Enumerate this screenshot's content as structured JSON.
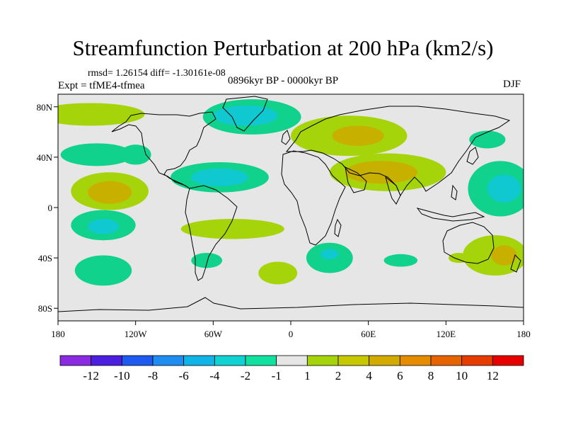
{
  "title": "Streamfunction Perturbation at 200 hPa (km2/s)",
  "stats": "rmsd= 1.26154 diff= -1.30161e-08",
  "experiment": "Expt = tfME4-tfmea",
  "period": "0896kyr BP - 0000kyr BP",
  "season": "DJF",
  "map": {
    "projection": "cylindrical equidistant",
    "lon_range": [
      -180,
      180
    ],
    "lat_range": [
      -90,
      90
    ],
    "x_ticks": [
      {
        "value": -180,
        "label": "180"
      },
      {
        "value": -120,
        "label": "120W"
      },
      {
        "value": -60,
        "label": "60W"
      },
      {
        "value": 0,
        "label": "0"
      },
      {
        "value": 60,
        "label": "60E"
      },
      {
        "value": 120,
        "label": "120E"
      },
      {
        "value": 180,
        "label": "180"
      }
    ],
    "y_ticks": [
      {
        "value": 80,
        "label": "80N"
      },
      {
        "value": 40,
        "label": "40N"
      },
      {
        "value": 0,
        "label": "0"
      },
      {
        "value": -40,
        "label": "40S"
      },
      {
        "value": -80,
        "label": "80S"
      }
    ],
    "colors": {
      "background": "#e6e6e6",
      "coastline": "#000000"
    },
    "anomaly_regions": [
      {
        "name": "north-pacific-high",
        "lon": -155,
        "lat": 74,
        "rlon": 42,
        "rlat": 9,
        "color": "#a6d40a"
      },
      {
        "name": "greenland-low",
        "lon": -30,
        "lat": 72,
        "rlon": 38,
        "rlat": 14,
        "color": "#10d28c"
      },
      {
        "name": "greenland-low-core",
        "lon": -35,
        "lat": 73,
        "rlon": 25,
        "rlat": 8,
        "color": "#10c8d0"
      },
      {
        "name": "europe-high",
        "lon": 45,
        "lat": 57,
        "rlon": 45,
        "rlat": 16,
        "color": "#a6d40a"
      },
      {
        "name": "europe-high-core",
        "lon": 52,
        "lat": 57,
        "rlon": 20,
        "rlat": 8,
        "color": "#c8b000"
      },
      {
        "name": "asia-high",
        "lon": 75,
        "lat": 28,
        "rlon": 45,
        "rlat": 15,
        "color": "#a6d40a"
      },
      {
        "name": "asia-high-core",
        "lon": 70,
        "lat": 28,
        "rlon": 28,
        "rlat": 9,
        "color": "#c8b000"
      },
      {
        "name": "pacific-low-north",
        "lon": -150,
        "lat": 42,
        "rlon": 28,
        "rlat": 9,
        "color": "#10d28c"
      },
      {
        "name": "atlantic-low",
        "lon": -55,
        "lat": 24,
        "rlon": 38,
        "rlat": 12,
        "color": "#10d28c"
      },
      {
        "name": "atlantic-low-core",
        "lon": -55,
        "lat": 24,
        "rlon": 22,
        "rlat": 7,
        "color": "#10c8d0"
      },
      {
        "name": "pacific-high-tropics",
        "lon": -140,
        "lat": 13,
        "rlon": 30,
        "rlat": 15,
        "color": "#a6d40a"
      },
      {
        "name": "pacific-high-core",
        "lon": -140,
        "lat": 12,
        "rlon": 17,
        "rlat": 9,
        "color": "#c8b000"
      },
      {
        "name": "west-pacific-low",
        "lon": 162,
        "lat": 15,
        "rlon": 25,
        "rlat": 22,
        "color": "#10d28c"
      },
      {
        "name": "west-pacific-low-core",
        "lon": 165,
        "lat": 15,
        "rlon": 13,
        "rlat": 11,
        "color": "#10c8d0"
      },
      {
        "name": "east-pacific-low-south",
        "lon": -145,
        "lat": -14,
        "rlon": 25,
        "rlat": 12,
        "color": "#10d28c"
      },
      {
        "name": "east-pacific-low-south-core",
        "lon": -145,
        "lat": -15,
        "rlon": 12,
        "rlat": 6,
        "color": "#10c8d0"
      },
      {
        "name": "south-pacific-low",
        "lon": -145,
        "lat": -50,
        "rlon": 22,
        "rlat": 12,
        "color": "#10d28c"
      },
      {
        "name": "south-atlantic-high",
        "lon": -45,
        "lat": -17,
        "rlon": 40,
        "rlat": 8,
        "color": "#a6d40a"
      },
      {
        "name": "south-america-low",
        "lon": -65,
        "lat": -42,
        "rlon": 12,
        "rlat": 6,
        "color": "#10d28c"
      },
      {
        "name": "south-atlantic-high-2",
        "lon": -10,
        "lat": -52,
        "rlon": 15,
        "rlat": 9,
        "color": "#a6d40a"
      },
      {
        "name": "south-africa-low",
        "lon": 30,
        "lat": -40,
        "rlon": 18,
        "rlat": 12,
        "color": "#10d28c"
      },
      {
        "name": "south-africa-low-core",
        "lon": 30,
        "lat": -37,
        "rlon": 7,
        "rlat": 4,
        "color": "#10c8d0"
      },
      {
        "name": "indian-ocean-low",
        "lon": 85,
        "lat": -42,
        "rlon": 13,
        "rlat": 5,
        "color": "#10d28c"
      },
      {
        "name": "indian-ocean-high",
        "lon": 130,
        "lat": -40,
        "rlon": 8,
        "rlat": 4,
        "color": "#a6d40a"
      },
      {
        "name": "australia-high",
        "lon": 158,
        "lat": -38,
        "rlon": 25,
        "rlat": 16,
        "color": "#a6d40a"
      },
      {
        "name": "australia-high-core",
        "lon": 165,
        "lat": -38,
        "rlon": 10,
        "rlat": 8,
        "color": "#c8b000"
      },
      {
        "name": "north-america-low",
        "lon": -120,
        "lat": 42,
        "rlon": 12,
        "rlat": 8,
        "color": "#10d28c"
      },
      {
        "name": "west-atlantic-low",
        "lon": 152,
        "lat": 54,
        "rlon": 14,
        "rlat": 7,
        "color": "#10d28c"
      }
    ]
  },
  "colorbar": {
    "colors": [
      "#8a2be2",
      "#4b1ee0",
      "#1e5af0",
      "#1e8cf0",
      "#10b4e6",
      "#10d2d2",
      "#10e0a0",
      "#e6e6e6",
      "#a6d40a",
      "#c8c800",
      "#d2aa00",
      "#e68c00",
      "#e66400",
      "#e63c00",
      "#e60000"
    ],
    "labels": [
      "-12",
      "-10",
      "-8",
      "-6",
      "-4",
      "-2",
      "-1",
      "1",
      "2",
      "4",
      "6",
      "8",
      "10",
      "12"
    ]
  }
}
